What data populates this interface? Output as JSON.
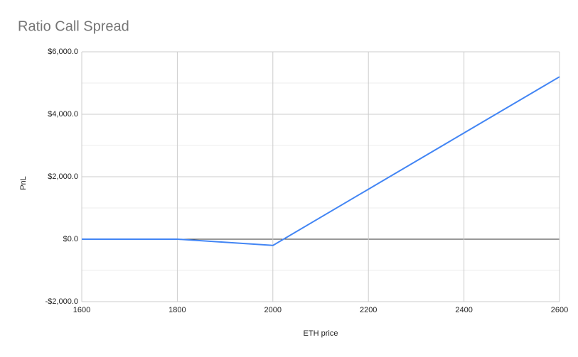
{
  "chart_data": {
    "type": "line",
    "title": "Ratio Call Spread",
    "x_label": "ETH price",
    "y_label": "PnL",
    "x": [
      1600,
      1800,
      2000,
      2200,
      2400,
      2600
    ],
    "series": [
      {
        "name": "PnL",
        "color": "#4285f4",
        "values": [
          0,
          0,
          -200,
          1600,
          3400,
          5200
        ]
      }
    ],
    "xlim": [
      1600,
      2600
    ],
    "xticks": [
      1600,
      1800,
      2000,
      2200,
      2400,
      2600
    ],
    "ylim": [
      -2000,
      6000
    ],
    "yticks": [
      {
        "value": -2000,
        "label": "-$2,000.0"
      },
      {
        "value": 0,
        "label": "$0.0"
      },
      {
        "value": 2000,
        "label": "$2,000.0"
      },
      {
        "value": 4000,
        "label": "$4,000.0"
      },
      {
        "value": 6000,
        "label": "$6,000.0"
      }
    ],
    "y_minor_ticks": [
      -1000,
      1000,
      3000,
      5000
    ],
    "grid": true,
    "legend": false
  }
}
